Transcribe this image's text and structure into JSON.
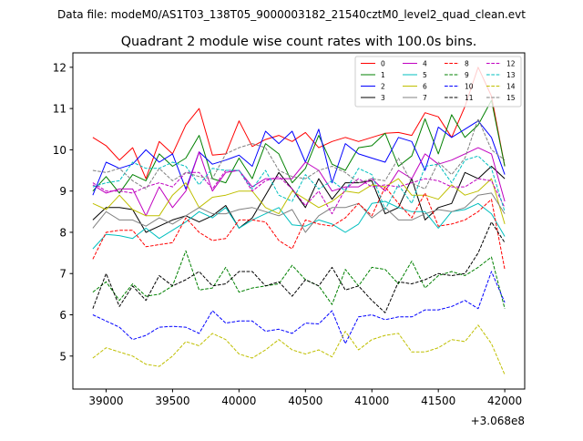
{
  "figure": {
    "suptitle": "Data file: modeM0/AS1T03_138T05_9000003182_21540cztM0_level2_quad_clean.evt",
    "offset_label": "+3.068e8"
  },
  "chart_data": {
    "type": "line",
    "title": "Quadrant 2 module wise count rates with 100.0s bins.",
    "xlabel": "",
    "ylabel": "",
    "x_offset": 306800000,
    "xlim": [
      38750,
      42150
    ],
    "ylim": [
      4.2,
      12.35
    ],
    "xticks": [
      39000,
      39500,
      40000,
      40500,
      41000,
      41500,
      42000
    ],
    "xtick_labels": [
      "39000",
      "39500",
      "40000",
      "40500",
      "41000",
      "41500",
      "42000"
    ],
    "yticks": [
      5,
      6,
      7,
      8,
      9,
      10,
      11,
      12
    ],
    "ytick_labels": [
      "5",
      "6",
      "7",
      "8",
      "9",
      "10",
      "11",
      "12"
    ],
    "grid": false,
    "legend_position": "top-right",
    "legend_columns": 4,
    "x": [
      38900,
      39000,
      39100,
      39200,
      39300,
      39400,
      39500,
      39600,
      39700,
      39800,
      39900,
      40000,
      40100,
      40200,
      40300,
      40400,
      40500,
      40600,
      40700,
      40800,
      40900,
      41000,
      41100,
      41200,
      41300,
      41400,
      41500,
      41600,
      41700,
      41800,
      41900,
      42000
    ],
    "series": [
      {
        "name": "0",
        "color": "#ff0000",
        "dash": "solid",
        "values": [
          10.3,
          10.1,
          9.75,
          10.05,
          9.3,
          10.2,
          9.9,
          10.6,
          11.0,
          9.87,
          9.9,
          10.7,
          10.08,
          10.25,
          10.35,
          10.2,
          10.42,
          10.05,
          10.2,
          10.3,
          10.2,
          10.3,
          10.4,
          10.42,
          10.35,
          10.9,
          10.8,
          10.3,
          11.05,
          12.0,
          11.3,
          9.6
        ]
      },
      {
        "name": "1",
        "color": "#008000",
        "dash": "solid",
        "values": [
          9.0,
          9.35,
          8.95,
          9.4,
          9.25,
          9.9,
          9.6,
          9.8,
          10.35,
          9.3,
          9.2,
          9.8,
          9.3,
          10.15,
          9.9,
          9.2,
          9.55,
          10.35,
          9.65,
          9.5,
          10.05,
          10.1,
          10.4,
          9.6,
          9.85,
          10.75,
          9.9,
          10.85,
          10.3,
          10.6,
          11.2,
          9.6
        ]
      },
      {
        "name": "2",
        "color": "#0000ff",
        "dash": "solid",
        "values": [
          8.9,
          9.7,
          9.55,
          9.65,
          10.0,
          9.7,
          9.9,
          9.05,
          9.95,
          9.65,
          9.75,
          9.87,
          9.6,
          10.45,
          10.15,
          10.45,
          9.7,
          10.5,
          9.2,
          10.15,
          9.9,
          9.8,
          9.7,
          10.3,
          10.2,
          9.5,
          10.55,
          10.3,
          10.5,
          10.7,
          10.3,
          9.4
        ]
      },
      {
        "name": "3",
        "color": "#000000",
        "dash": "solid",
        "values": [
          8.3,
          8.6,
          8.6,
          8.55,
          8.0,
          8.15,
          8.3,
          8.4,
          8.25,
          8.4,
          8.65,
          8.1,
          8.35,
          8.9,
          9.45,
          9.05,
          8.6,
          9.3,
          8.8,
          9.2,
          9.2,
          9.25,
          8.45,
          8.6,
          9.3,
          8.3,
          8.6,
          8.7,
          9.45,
          9.3,
          9.6,
          9.3
        ]
      },
      {
        "name": "4",
        "color": "#c000c0",
        "dash": "solid",
        "values": [
          9.15,
          8.95,
          9.05,
          9.05,
          8.4,
          9.1,
          8.6,
          9.0,
          9.95,
          9.0,
          9.45,
          9.5,
          9.1,
          9.3,
          9.3,
          9.3,
          9.7,
          9.5,
          9.0,
          9.1,
          9.1,
          9.3,
          9.0,
          9.5,
          9.3,
          9.9,
          9.65,
          9.75,
          9.9,
          10.05,
          9.9,
          8.75
        ]
      },
      {
        "name": "5",
        "color": "#00bfbf",
        "dash": "solid",
        "values": [
          7.6,
          7.95,
          7.92,
          7.85,
          8.1,
          7.85,
          8.05,
          8.25,
          8.5,
          8.35,
          8.6,
          8.1,
          8.3,
          8.45,
          8.6,
          8.18,
          8.15,
          8.3,
          8.2,
          8.0,
          8.2,
          8.7,
          8.75,
          8.6,
          8.5,
          8.5,
          8.1,
          8.5,
          8.55,
          8.7,
          8.45,
          7.9
        ]
      },
      {
        "name": "6",
        "color": "#bfbf00",
        "dash": "solid",
        "values": [
          8.7,
          8.55,
          8.9,
          8.55,
          8.4,
          8.4,
          8.9,
          9.2,
          8.6,
          8.85,
          8.9,
          9.0,
          9.0,
          8.6,
          8.45,
          9.0,
          8.8,
          8.6,
          8.75,
          9.0,
          8.95,
          9.15,
          9.1,
          9.3,
          8.9,
          8.9,
          8.8,
          9.15,
          8.9,
          9.0,
          9.3,
          8.2
        ]
      },
      {
        "name": "7",
        "color": "#808080",
        "dash": "solid",
        "values": [
          8.1,
          8.5,
          8.3,
          8.3,
          8.15,
          8.35,
          8.2,
          8.4,
          8.6,
          8.45,
          8.45,
          8.55,
          8.6,
          8.5,
          8.4,
          8.55,
          8.0,
          8.4,
          8.6,
          8.6,
          8.7,
          8.35,
          8.6,
          8.3,
          8.3,
          8.45,
          8.55,
          8.5,
          8.6,
          8.9,
          8.95,
          8.45
        ]
      },
      {
        "name": "8",
        "color": "#ff0000",
        "dash": "dashed",
        "values": [
          7.35,
          8.0,
          8.05,
          8.05,
          7.65,
          7.7,
          7.75,
          8.35,
          8.0,
          7.8,
          7.85,
          8.3,
          8.3,
          8.25,
          7.8,
          7.6,
          8.3,
          8.2,
          8.15,
          8.35,
          8.7,
          8.4,
          9.1,
          8.7,
          8.35,
          8.95,
          8.15,
          8.2,
          8.3,
          8.5,
          8.8,
          7.1
        ]
      },
      {
        "name": "9",
        "color": "#008000",
        "dash": "dashed",
        "values": [
          6.55,
          6.8,
          6.35,
          6.75,
          6.45,
          6.5,
          6.7,
          7.55,
          6.6,
          6.65,
          7.15,
          6.55,
          6.65,
          6.7,
          6.75,
          7.2,
          6.85,
          6.7,
          6.25,
          7.1,
          6.7,
          7.15,
          7.1,
          6.75,
          7.3,
          6.65,
          6.95,
          7.05,
          6.95,
          7.15,
          7.4,
          6.15
        ]
      },
      {
        "name": "10",
        "color": "#0000ff",
        "dash": "dashed",
        "values": [
          6.0,
          5.85,
          5.7,
          5.4,
          5.5,
          5.7,
          5.72,
          5.7,
          5.55,
          6.1,
          5.8,
          5.85,
          5.85,
          5.6,
          5.65,
          5.55,
          5.8,
          5.78,
          6.1,
          5.3,
          5.95,
          6.0,
          5.88,
          5.95,
          5.95,
          6.12,
          6.12,
          6.2,
          6.35,
          6.15,
          7.05,
          6.3
        ]
      },
      {
        "name": "11",
        "color": "#000000",
        "dash": "dashed",
        "values": [
          6.15,
          7.0,
          6.2,
          6.7,
          6.35,
          6.95,
          6.7,
          6.85,
          7.05,
          6.7,
          6.75,
          7.05,
          7.05,
          6.7,
          6.8,
          6.45,
          6.85,
          6.7,
          7.15,
          6.6,
          6.7,
          6.35,
          6.05,
          6.8,
          6.75,
          6.85,
          7.0,
          6.95,
          7.0,
          7.5,
          8.25,
          7.75
        ]
      },
      {
        "name": "12",
        "color": "#c000c0",
        "dash": "dashed",
        "values": [
          9.2,
          9.0,
          9.0,
          8.95,
          9.1,
          9.2,
          9.1,
          9.45,
          9.45,
          9.05,
          9.5,
          9.5,
          9.0,
          9.25,
          9.35,
          9.05,
          8.65,
          9.0,
          8.45,
          9.05,
          9.3,
          9.1,
          9.15,
          9.1,
          9.2,
          9.3,
          9.25,
          9.1,
          9.1,
          9.3,
          9.25,
          8.6
        ]
      },
      {
        "name": "13",
        "color": "#00bfbf",
        "dash": "dashed",
        "values": [
          9.1,
          9.2,
          9.25,
          9.7,
          9.55,
          9.55,
          9.7,
          9.6,
          9.15,
          9.55,
          9.5,
          9.5,
          9.05,
          9.5,
          8.9,
          8.75,
          9.4,
          9.05,
          9.25,
          9.0,
          9.55,
          9.4,
          8.55,
          9.15,
          8.7,
          9.6,
          9.65,
          9.2,
          9.75,
          9.85,
          9.55,
          8.5
        ]
      },
      {
        "name": "14",
        "color": "#bfbf00",
        "dash": "dashed",
        "values": [
          4.95,
          5.2,
          5.1,
          5.0,
          4.8,
          4.75,
          5.0,
          5.35,
          5.25,
          5.55,
          5.4,
          5.05,
          4.95,
          5.15,
          5.4,
          5.15,
          5.05,
          5.15,
          4.98,
          5.6,
          5.15,
          5.4,
          5.5,
          5.55,
          5.1,
          5.1,
          5.2,
          5.4,
          5.35,
          5.75,
          5.3,
          4.55
        ]
      },
      {
        "name": "15",
        "color": "#808080",
        "dash": "dashed",
        "values": [
          9.5,
          9.45,
          9.55,
          9.25,
          9.05,
          9.55,
          9.25,
          9.45,
          9.35,
          9.3,
          9.9,
          10.05,
          10.15,
          10.05,
          9.5,
          9.35,
          9.3,
          9.5,
          9.6,
          9.45,
          9.2,
          9.3,
          9.25,
          9.8,
          9.2,
          9.05,
          9.7,
          9.4,
          9.8,
          10.75,
          10.0,
          9.75
        ]
      }
    ]
  }
}
